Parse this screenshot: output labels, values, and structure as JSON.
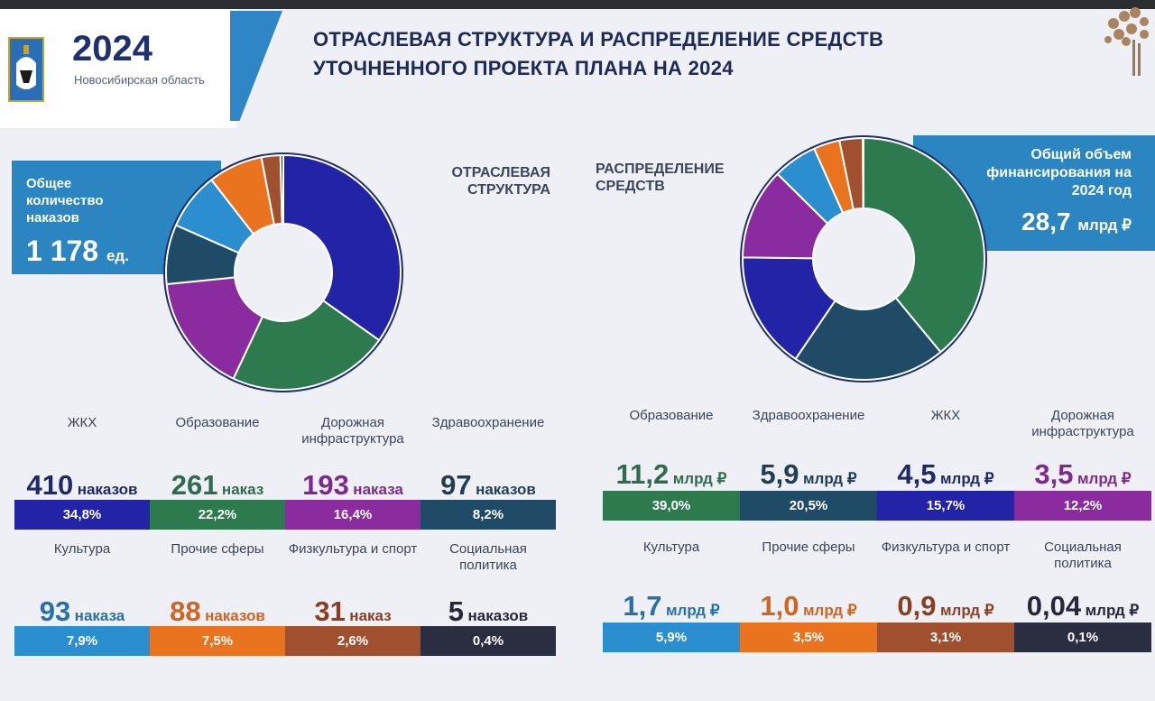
{
  "header": {
    "year": "2024",
    "region": "Новосибирская область",
    "title_line1": "ОТРАСЛЕВАЯ СТРУКТУРА И РАСПРЕДЕЛЕНИЕ СРЕДСТВ",
    "title_line2": "УТОЧНЕННОГО ПРОЕКТА ПЛАНА НА 2024"
  },
  "labels": {
    "sectoral": "ОТРАСЛЕВАЯ СТРУКТУРА",
    "distribution": "РАСПРЕДЕЛЕНИЕ СРЕДСТВ"
  },
  "total_orders": {
    "title": "Общее количество наказов",
    "value": "1 178",
    "unit": "ед."
  },
  "total_funding": {
    "title": "Общий объем финансирования на 2024 год",
    "value": "28,7",
    "unit": "млрд ₽"
  },
  "colors": {
    "navy": "#2323a8",
    "green": "#2d7a4e",
    "purple": "#8a2ca0",
    "teal_dark": "#1f4b66",
    "sky": "#2b8fcf",
    "orange": "#ea7320",
    "brown": "#a0502e",
    "charcoal": "#2b2e40"
  },
  "orders": [
    {
      "category": "ЖКХ",
      "number": "410",
      "unit": "наказов",
      "percent": "34,8%",
      "color": "#2323a8",
      "text_color": "#1e2a66"
    },
    {
      "category": "Образование",
      "number": "261",
      "unit": "наказ",
      "percent": "22,2%",
      "color": "#2d7a4e",
      "text_color": "#2f6b4e"
    },
    {
      "category": "Дорожная инфраструктура",
      "number": "193",
      "unit": "наказа",
      "percent": "16,4%",
      "color": "#8a2ca0",
      "text_color": "#7d2a8c"
    },
    {
      "category": "Здравоохранение",
      "number": "97",
      "unit": "наказов",
      "percent": "8,2%",
      "color": "#1f4b66",
      "text_color": "#1f3f55"
    },
    {
      "category": "Культура",
      "number": "93",
      "unit": "наказа",
      "percent": "7,9%",
      "color": "#2b8fcf",
      "text_color": "#2672a8"
    },
    {
      "category": "Прочие сферы",
      "number": "88",
      "unit": "наказов",
      "percent": "7,5%",
      "color": "#ea7320",
      "text_color": "#d06420"
    },
    {
      "category": "Физкультура и спорт",
      "number": "31",
      "unit": "наказ",
      "percent": "2,6%",
      "color": "#a0502e",
      "text_color": "#8a3f22"
    },
    {
      "category": "Социальная политика",
      "number": "5",
      "unit": "наказов",
      "percent": "0,4%",
      "color": "#2b2e40",
      "text_color": "#24283a"
    }
  ],
  "funding": [
    {
      "category": "Образование",
      "number": "11,2",
      "unit": "млрд ₽",
      "percent": "39,0%",
      "color": "#2d7a4e",
      "text_color": "#2f6b4e"
    },
    {
      "category": "Здравоохранение",
      "number": "5,9",
      "unit": "млрд ₽",
      "percent": "20,5%",
      "color": "#1f4b66",
      "text_color": "#1f3f55"
    },
    {
      "category": "ЖКХ",
      "number": "4,5",
      "unit": "млрд ₽",
      "percent": "15,7%",
      "color": "#2323a8",
      "text_color": "#1e2a66"
    },
    {
      "category": "Дорожная инфраструктура",
      "number": "3,5",
      "unit": "млрд ₽",
      "percent": "12,2%",
      "color": "#8a2ca0",
      "text_color": "#7d2a8c"
    },
    {
      "category": "Культура",
      "number": "1,7",
      "unit": "млрд ₽",
      "percent": "5,9%",
      "color": "#2b8fcf",
      "text_color": "#2672a8"
    },
    {
      "category": "Прочие сферы",
      "number": "1,0",
      "unit": "млрд ₽",
      "percent": "3,5%",
      "color": "#ea7320",
      "text_color": "#d06420"
    },
    {
      "category": "Физкультура и спорт",
      "number": "0,9",
      "unit": "млрд ₽",
      "percent": "3,1%",
      "color": "#a0502e",
      "text_color": "#8a3f22"
    },
    {
      "category": "Социальная политика",
      "number": "0,04",
      "unit": "млрд ₽",
      "percent": "0,1%",
      "color": "#2b2e40",
      "text_color": "#24283a"
    }
  ],
  "chart_data": [
    {
      "type": "pie",
      "title": "ОТРАСЛЕВАЯ СТРУКТУРА",
      "categories": [
        "ЖКХ",
        "Образование",
        "Дорожная инфраструктура",
        "Здравоохранение",
        "Культура",
        "Прочие сферы",
        "Физкультура и спорт",
        "Социальная политика"
      ],
      "values": [
        34.8,
        22.2,
        16.4,
        8.2,
        7.9,
        7.5,
        2.6,
        0.4
      ],
      "counts": [
        410,
        261,
        193,
        97,
        93,
        88,
        31,
        5
      ],
      "total": 1178,
      "colors": [
        "#2323a8",
        "#2d7a4e",
        "#8a2ca0",
        "#1f4b66",
        "#2b8fcf",
        "#ea7320",
        "#a0502e",
        "#2b2e40"
      ],
      "donut": true
    },
    {
      "type": "pie",
      "title": "РАСПРЕДЕЛЕНИЕ СРЕДСТВ",
      "categories": [
        "Образование",
        "Здравоохранение",
        "ЖКХ",
        "Дорожная инфраструктура",
        "Культура",
        "Прочие сферы",
        "Физкультура и спорт",
        "Социальная политика"
      ],
      "values": [
        39.0,
        20.5,
        15.7,
        12.2,
        5.9,
        3.5,
        3.1,
        0.1
      ],
      "amounts_bn_rub": [
        11.2,
        5.9,
        4.5,
        3.5,
        1.7,
        1.0,
        0.9,
        0.04
      ],
      "total_bn_rub": 28.7,
      "colors": [
        "#2d7a4e",
        "#1f4b66",
        "#2323a8",
        "#8a2ca0",
        "#2b8fcf",
        "#ea7320",
        "#a0502e",
        "#2b2e40"
      ],
      "donut": true
    }
  ]
}
